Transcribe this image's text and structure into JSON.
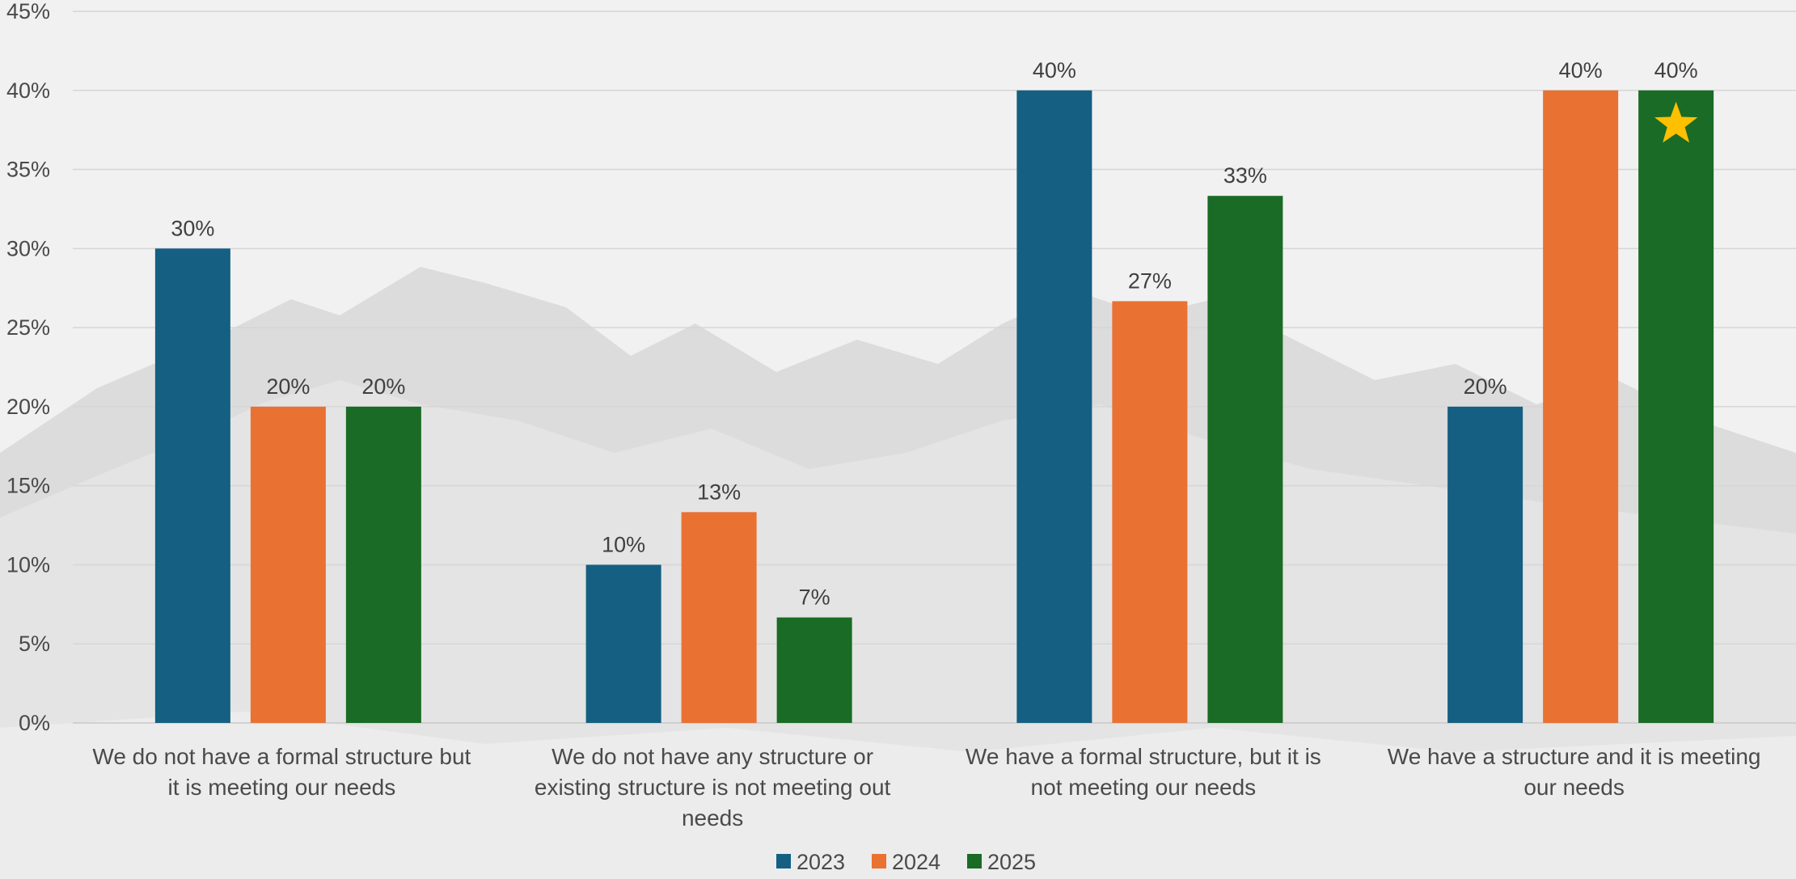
{
  "chart_data": {
    "type": "bar",
    "title": "",
    "xlabel": "",
    "ylabel": "",
    "ylim": [
      0,
      45
    ],
    "ytick_step": 5,
    "ytick_format": "percent",
    "grid": true,
    "legend_position": "bottom",
    "categories": [
      [
        "We do not have a formal structure but",
        "it is meeting our needs"
      ],
      [
        "We do not have any structure or",
        "existing structure is not meeting out",
        "needs"
      ],
      [
        "We have a formal structure, but it is",
        "not meeting our needs"
      ],
      [
        "We have a structure and it is meeting",
        "our needs"
      ]
    ],
    "series": [
      {
        "name": "2023",
        "color": "#155f83",
        "values": [
          30,
          10,
          40,
          20
        ],
        "labels": [
          "30%",
          "10%",
          "40%",
          "20%"
        ]
      },
      {
        "name": "2024",
        "color": "#e97132",
        "values": [
          20,
          13.33,
          26.67,
          40
        ],
        "labels": [
          "20%",
          "13%",
          "27%",
          "40%"
        ]
      },
      {
        "name": "2025",
        "color": "#1a6b25",
        "values": [
          20,
          6.67,
          33.33,
          40
        ],
        "labels": [
          "20%",
          "7%",
          "33%",
          "40%"
        ]
      }
    ],
    "annotations": [
      {
        "type": "star-icon",
        "series": "2025",
        "category_index": 3,
        "color": "#ffc000"
      }
    ]
  }
}
